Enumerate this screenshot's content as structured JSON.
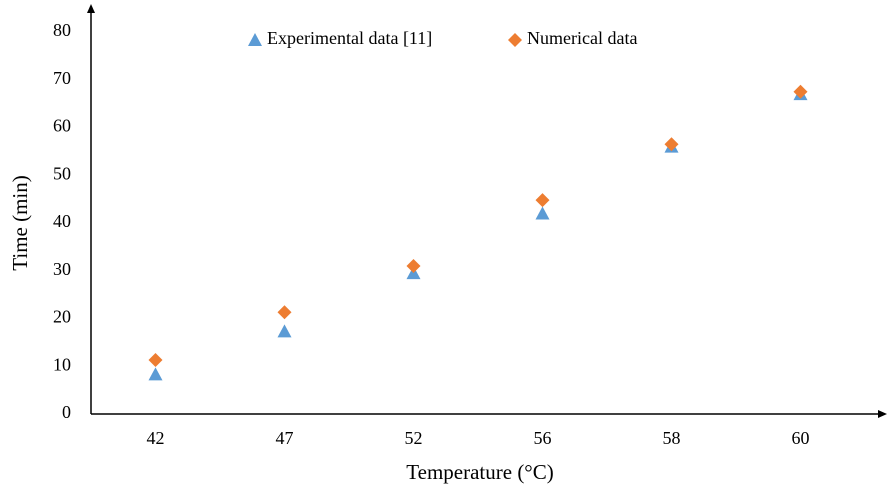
{
  "chart_data": {
    "type": "scatter",
    "x_label": "Temperature (°C)",
    "y_label": "Time (min)",
    "categories": [
      "42",
      "47",
      "52",
      "56",
      "58",
      "60"
    ],
    "series": [
      {
        "name": "Experimental data [11]",
        "color": "#5b9bd5",
        "marker": "triangle",
        "values": [
          8.3,
          17.3,
          29.5,
          42,
          56,
          67
        ]
      },
      {
        "name": "Numerical data",
        "color": "#ed7d31",
        "marker": "diamond",
        "values": [
          11.3,
          21.3,
          31,
          44.8,
          56.5,
          67.5
        ]
      }
    ],
    "ylim": [
      0,
      80
    ],
    "yticks": [
      0,
      10,
      20,
      30,
      40,
      50,
      60,
      70,
      80
    ],
    "grid": false,
    "legend": "top"
  }
}
